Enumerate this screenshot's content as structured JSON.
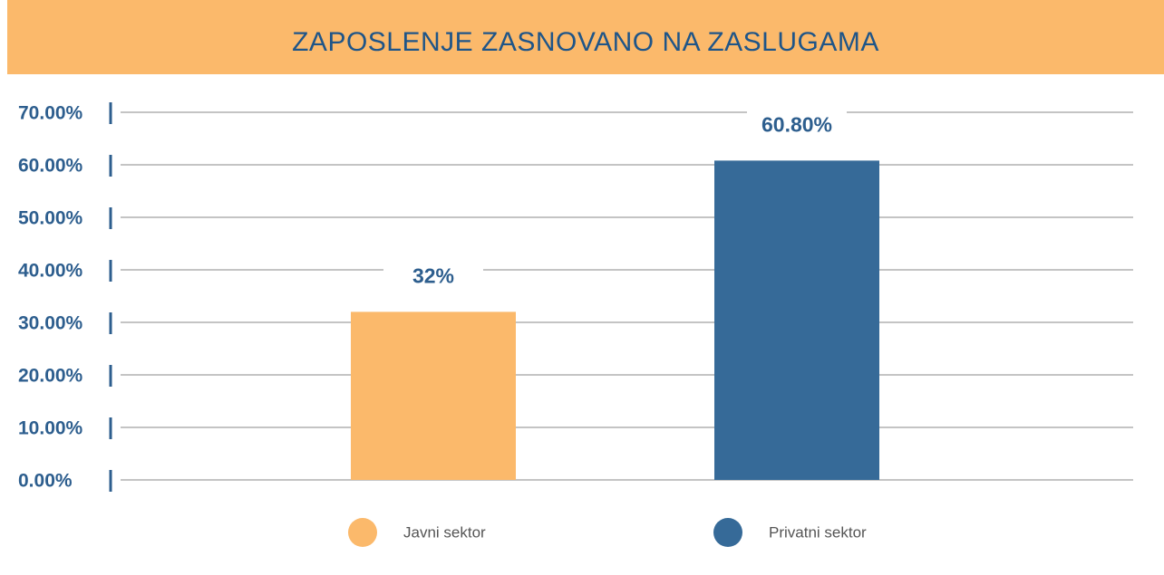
{
  "chart_data": {
    "type": "bar",
    "title": "ZAPOSLENJE ZASNOVANO NA ZASLUGAMA",
    "categories": [
      null
    ],
    "series": [
      {
        "name": "Javni sektor",
        "color": "#fbb96b",
        "values": [
          32
        ],
        "value_labels": [
          "32%"
        ]
      },
      {
        "name": "Privatni sektor",
        "color": "#366a98",
        "values": [
          60.8
        ],
        "value_labels": [
          "60.80%"
        ]
      }
    ],
    "ylim": [
      0,
      70
    ],
    "yticks": [
      {
        "value": 0,
        "label": "0.00%"
      },
      {
        "value": 10,
        "label": "10.00%"
      },
      {
        "value": 20,
        "label": "20.00%"
      },
      {
        "value": 30,
        "label": "30.00%"
      },
      {
        "value": 40,
        "label": "40.00%"
      },
      {
        "value": 50,
        "label": "50.00%"
      },
      {
        "value": 60,
        "label": "60.00%"
      },
      {
        "value": 70,
        "label": "70.00%"
      }
    ],
    "grid": true,
    "legend": "bottom"
  }
}
